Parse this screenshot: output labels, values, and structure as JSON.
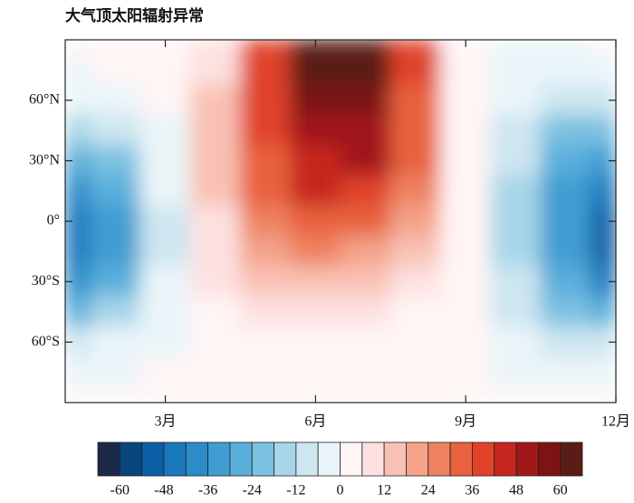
{
  "chart_data": {
    "type": "contour",
    "title": "大气顶太阳辐射异常",
    "x": [
      1,
      2,
      3,
      4,
      5,
      6,
      7,
      8,
      9,
      10,
      11,
      12
    ],
    "y": [
      90,
      75,
      60,
      45,
      30,
      15,
      0,
      -15,
      -30,
      -45,
      -60,
      -75,
      -90
    ],
    "z": [
      [
        0,
        2,
        3,
        8,
        40,
        68,
        66,
        36,
        4,
        -1,
        -1,
        0
      ],
      [
        -1,
        0,
        2,
        10,
        40,
        64,
        62,
        36,
        4,
        -2,
        -3,
        -2
      ],
      [
        -3,
        -3,
        0,
        12,
        38,
        56,
        56,
        34,
        4,
        -6,
        -10,
        -8
      ],
      [
        -15,
        -10,
        -2,
        14,
        36,
        50,
        52,
        32,
        4,
        -10,
        -20,
        -22
      ],
      [
        -30,
        -20,
        -4,
        14,
        34,
        46,
        48,
        30,
        4,
        -12,
        -28,
        -36
      ],
      [
        -40,
        -28,
        -6,
        12,
        30,
        42,
        40,
        26,
        3,
        -14,
        -32,
        -44
      ],
      [
        -45,
        -32,
        -8,
        10,
        26,
        34,
        32,
        20,
        2,
        -14,
        -36,
        -50
      ],
      [
        -48,
        -32,
        -8,
        8,
        20,
        24,
        22,
        14,
        2,
        -14,
        -36,
        -52
      ],
      [
        -40,
        -26,
        -6,
        6,
        14,
        15,
        14,
        9,
        1,
        -12,
        -30,
        -44
      ],
      [
        -25,
        -16,
        -4,
        4,
        8,
        8,
        7,
        5,
        0,
        -8,
        -22,
        -30
      ],
      [
        -10,
        -6,
        -2,
        2,
        4,
        3,
        3,
        2,
        0,
        -4,
        -12,
        -12
      ],
      [
        -3,
        -2,
        0,
        2,
        2,
        2,
        1,
        1,
        0,
        -1,
        -3,
        -3
      ],
      [
        0,
        0,
        0,
        2,
        2,
        1,
        1,
        0,
        0,
        0,
        0,
        0
      ]
    ],
    "xlim": [
      1,
      12
    ],
    "ylim": [
      -90,
      90
    ],
    "xticks": [
      {
        "value": 3,
        "label": "3月"
      },
      {
        "value": 6,
        "label": "6月"
      },
      {
        "value": 9,
        "label": "9月"
      },
      {
        "value": 12,
        "label": "12月"
      }
    ],
    "yticks": [
      {
        "value": 60,
        "label": "60°N"
      },
      {
        "value": 30,
        "label": "30°N"
      },
      {
        "value": 0,
        "label": "0°"
      },
      {
        "value": -30,
        "label": "30°S"
      },
      {
        "value": -60,
        "label": "60°S"
      }
    ],
    "levels": [
      -60,
      -54,
      -48,
      -42,
      -36,
      -30,
      -24,
      -18,
      -12,
      -6,
      0,
      6,
      12,
      18,
      24,
      30,
      36,
      42,
      48,
      54,
      60
    ],
    "colors": [
      "#1b2a49",
      "#08477e",
      "#0b5fa5",
      "#1a78bd",
      "#2b8cc8",
      "#3f9dd1",
      "#5aafdb",
      "#7bc1e1",
      "#a7d6e8",
      "#cde6f0",
      "#eaf5f9",
      "#fff5f5",
      "#fde1e0",
      "#f9c1b4",
      "#f4a28a",
      "#ee8260",
      "#e8623e",
      "#e0432a",
      "#c6261f",
      "#a0181a",
      "#7c1414",
      "#5a1c14"
    ],
    "colorbar_ticks": [
      -60,
      -48,
      -36,
      -24,
      -12,
      0,
      12,
      24,
      36,
      48,
      60
    ]
  }
}
